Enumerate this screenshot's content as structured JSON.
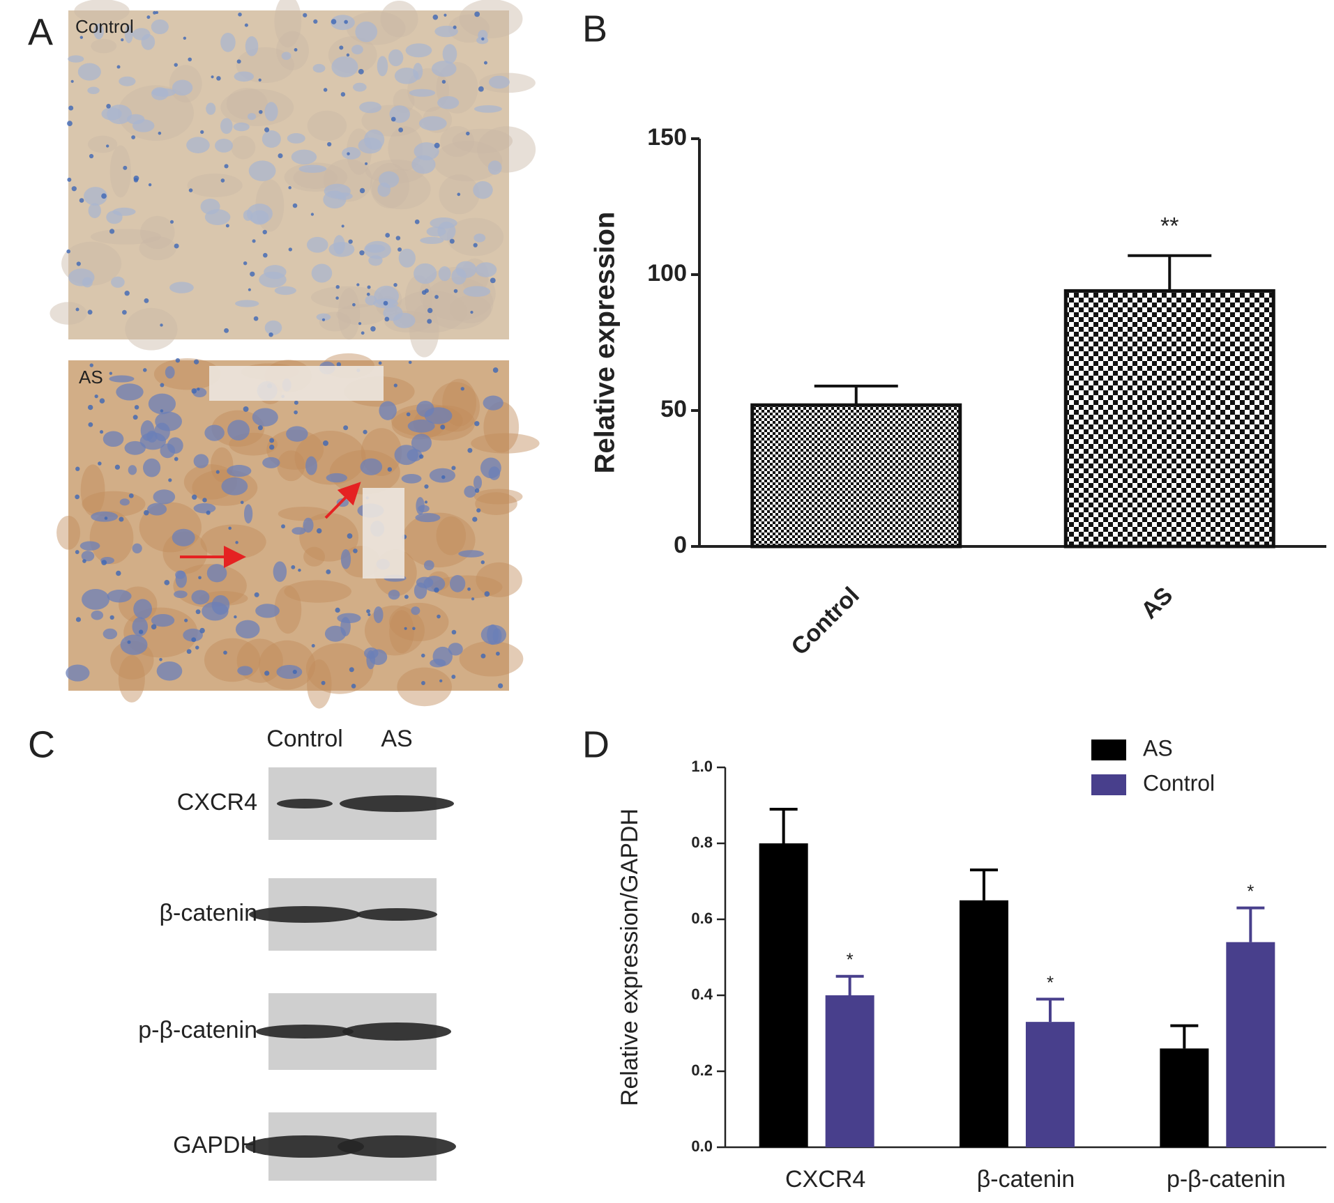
{
  "panel_labels": [
    "A",
    "B",
    "C",
    "D"
  ],
  "histology": {
    "labels": [
      "Control",
      "AS"
    ]
  },
  "blot": {
    "lanes": [
      "Control",
      "AS"
    ],
    "proteins": [
      "CXCR4",
      "β-catenin",
      "p-β-catenin",
      "GAPDH"
    ]
  },
  "chart_data": [
    {
      "type": "bar",
      "y_label": "Relative expression",
      "categories": [
        "Control",
        "AS"
      ],
      "values": [
        52,
        94
      ],
      "errors": [
        7,
        13
      ],
      "significance": [
        null,
        "**"
      ],
      "color": "#111111",
      "fill": "checkerboard",
      "ylim": [
        0,
        150
      ],
      "yticks": [
        0,
        50,
        100,
        150
      ],
      "grid": false
    },
    {
      "type": "bar",
      "y_label": "Relative expression/GAPDH",
      "categories": [
        "CXCR4",
        "β-catenin",
        "p-β-catenin"
      ],
      "series": [
        {
          "name": "AS",
          "color": "#000000",
          "values": [
            0.8,
            0.65,
            0.26
          ],
          "errors": [
            0.09,
            0.08,
            0.06
          ],
          "significance": [
            null,
            null,
            null
          ]
        },
        {
          "name": "Control",
          "color": "#483f8c",
          "values": [
            0.4,
            0.33,
            0.54
          ],
          "errors": [
            0.05,
            0.06,
            0.09
          ],
          "significance": [
            "*",
            "*",
            "*"
          ]
        }
      ],
      "ylim": [
        0,
        1.0
      ],
      "yticks": [
        {
          "value": 0,
          "label": "0.0"
        },
        0.2,
        0.4,
        0.6,
        0.8,
        {
          "value": 1.0,
          "label": "1.0"
        }
      ],
      "legend": "top-right",
      "grid": false
    }
  ]
}
